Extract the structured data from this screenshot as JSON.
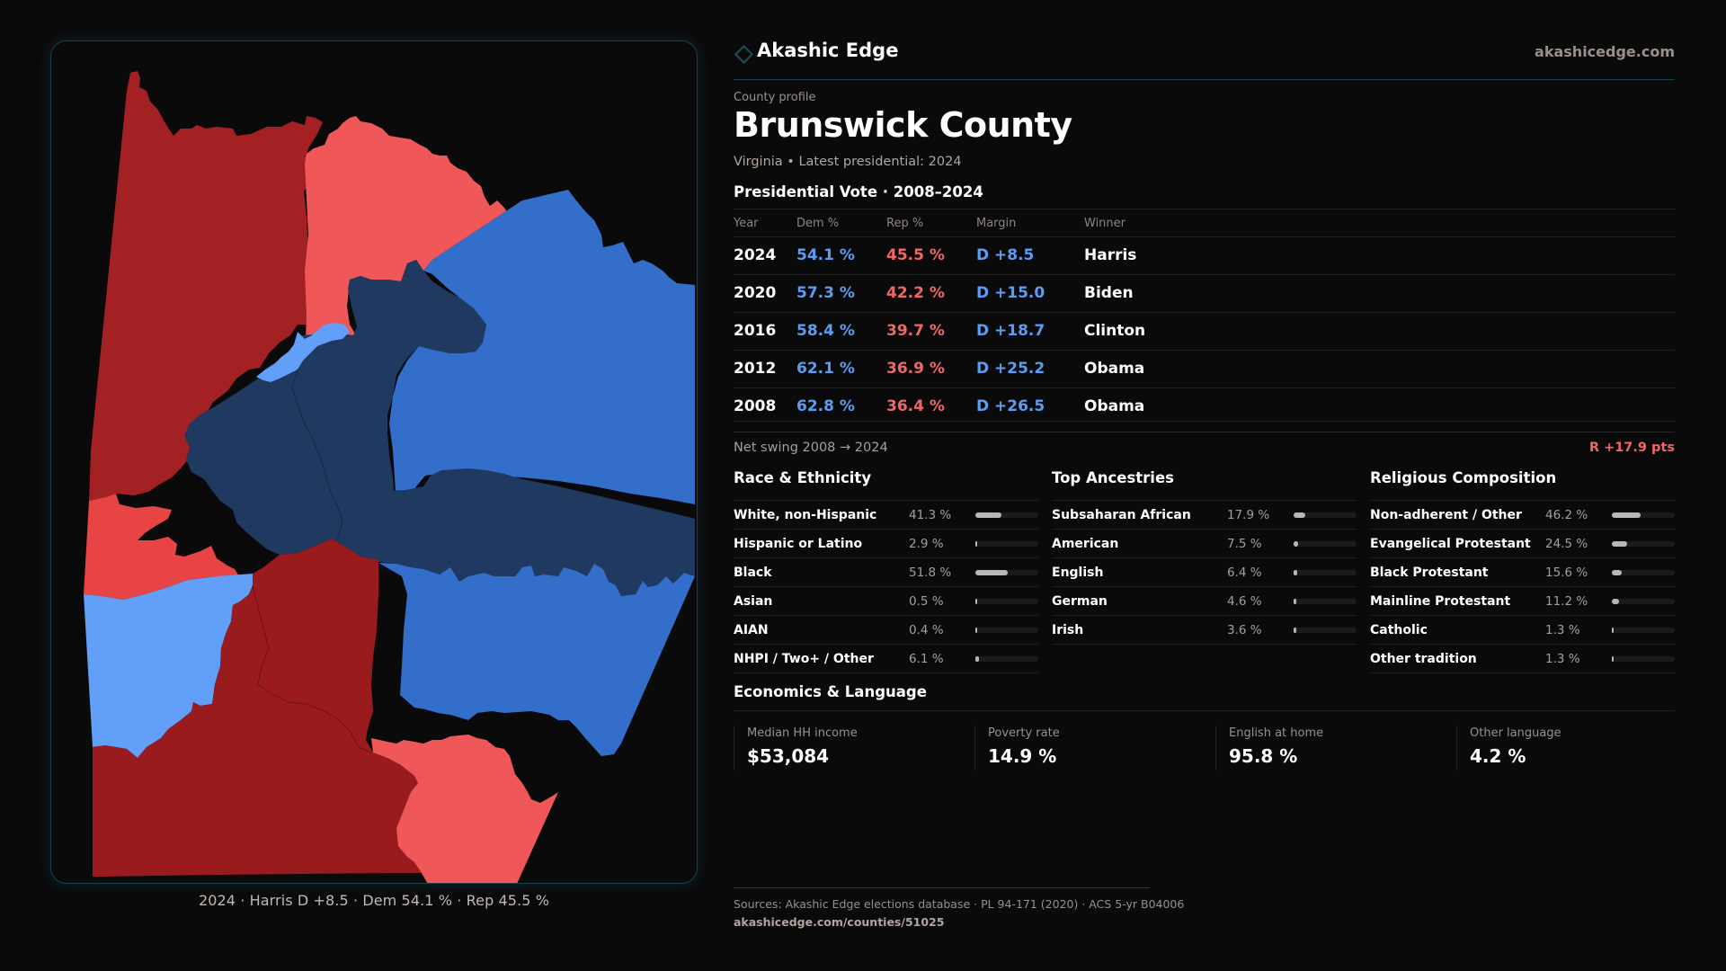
{
  "brand": {
    "name": "Akashic Edge",
    "url": "akashicedge.com",
    "icon": "diamond-outline-icon",
    "accent": "#17505b"
  },
  "profile": {
    "eyebrow": "County profile",
    "title": "Brunswick County",
    "subtitle": "Virginia • Latest presidential: 2024"
  },
  "colors": {
    "dem": "#5c9df0",
    "rep": "#f06766"
  },
  "map": {
    "caption": "2024 · Harris D +8.5 · Dem 54.1 % · Rep 45.5 %",
    "legend_colors": {
      "strong_rep": "#9a1b1e",
      "rep": "#a32023",
      "lean_rep": "#f05758",
      "tilt_rep": "#e84445",
      "lean_dem": "#629ff8",
      "dem": "#336ecb",
      "strong_dem": "#1f3960"
    }
  },
  "vote": {
    "title": "Presidential Vote · 2008–2024",
    "headers": {
      "year": "Year",
      "dem": "Dem %",
      "rep": "Rep %",
      "margin": "Margin",
      "winner": "Winner"
    },
    "rows": [
      {
        "year": "2024",
        "dem": "54.1 %",
        "rep": "45.5 %",
        "margin": "D +8.5",
        "winner": "Harris"
      },
      {
        "year": "2020",
        "dem": "57.3 %",
        "rep": "42.2 %",
        "margin": "D +15.0",
        "winner": "Biden"
      },
      {
        "year": "2016",
        "dem": "58.4 %",
        "rep": "39.7 %",
        "margin": "D +18.7",
        "winner": "Clinton"
      },
      {
        "year": "2012",
        "dem": "62.1 %",
        "rep": "36.9 %",
        "margin": "D +25.2",
        "winner": "Obama"
      },
      {
        "year": "2008",
        "dem": "62.8 %",
        "rep": "36.4 %",
        "margin": "D +26.5",
        "winner": "Obama"
      }
    ],
    "net_swing_label": "Net swing 2008 → 2024",
    "net_swing_value": "R +17.9 pts"
  },
  "demographics": [
    {
      "title": "Race & Ethnicity",
      "items": [
        {
          "label": "White, non-Hispanic",
          "value": "41.3 %",
          "pct": 41.3
        },
        {
          "label": "Hispanic or Latino",
          "value": "2.9 %",
          "pct": 2.9
        },
        {
          "label": "Black",
          "value": "51.8 %",
          "pct": 51.8
        },
        {
          "label": "Asian",
          "value": "0.5 %",
          "pct": 0.5
        },
        {
          "label": "AIAN",
          "value": "0.4 %",
          "pct": 0.4
        },
        {
          "label": "NHPI / Two+ / Other",
          "value": "6.1 %",
          "pct": 6.1
        }
      ]
    },
    {
      "title": "Top Ancestries",
      "items": [
        {
          "label": "Subsaharan African",
          "value": "17.9 %",
          "pct": 17.9
        },
        {
          "label": "American",
          "value": "7.5 %",
          "pct": 7.5
        },
        {
          "label": "English",
          "value": "6.4 %",
          "pct": 6.4
        },
        {
          "label": "German",
          "value": "4.6 %",
          "pct": 4.6
        },
        {
          "label": "Irish",
          "value": "3.6 %",
          "pct": 3.6
        }
      ]
    },
    {
      "title": "Religious Composition",
      "items": [
        {
          "label": "Non-adherent / Other",
          "value": "46.2 %",
          "pct": 46.2
        },
        {
          "label": "Evangelical Protestant",
          "value": "24.5 %",
          "pct": 24.5
        },
        {
          "label": "Black Protestant",
          "value": "15.6 %",
          "pct": 15.6
        },
        {
          "label": "Mainline Protestant",
          "value": "11.2 %",
          "pct": 11.2
        },
        {
          "label": "Catholic",
          "value": "1.3 %",
          "pct": 1.3
        },
        {
          "label": "Other tradition",
          "value": "1.3 %",
          "pct": 1.3
        }
      ]
    }
  ],
  "economics": {
    "title": "Economics & Language",
    "stats": [
      {
        "label": "Median HH income",
        "value": "$53,084"
      },
      {
        "label": "Poverty rate",
        "value": "14.9 %"
      },
      {
        "label": "English at home",
        "value": "95.8 %"
      },
      {
        "label": "Other language",
        "value": "4.2 %"
      }
    ]
  },
  "footer": {
    "sources": "Sources: Akashic Edge elections database · PL 94-171 (2020) · ACS 5-yr B04006",
    "url": "akashicedge.com/counties/51025"
  }
}
